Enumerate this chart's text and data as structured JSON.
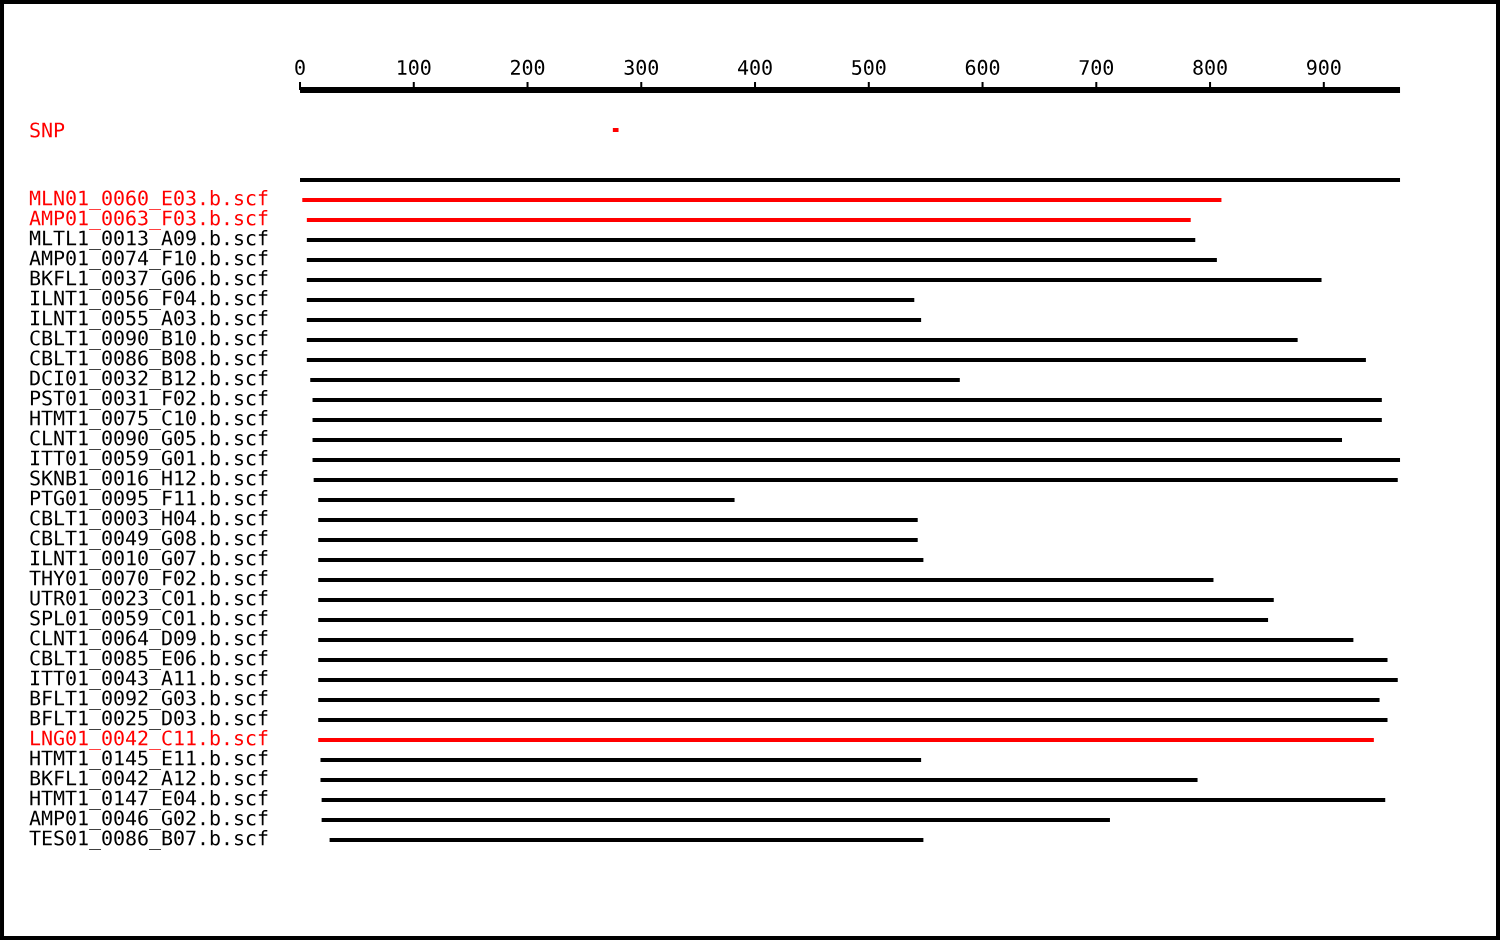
{
  "chart_data": {
    "type": "bar",
    "orientation": "horizontal",
    "categories": [
      "SNP",
      null,
      "MLN01_0060_E03.b.scf",
      "AMP01_0063_F03.b.scf",
      "MLTL1_0013_A09.b.scf",
      "AMP01_0074_F10.b.scf",
      "BKFL1_0037_G06.b.scf",
      "ILNT1_0056_F04.b.scf",
      "ILNT1_0055_A03.b.scf",
      "CBLT1_0090_B10.b.scf",
      "CBLT1_0086_B08.b.scf",
      "DCI01_0032_B12.b.scf",
      "PST01_0031_F02.b.scf",
      "HTMT1_0075_C10.b.scf",
      "CLNT1_0090_G05.b.scf",
      "ITT01_0059_G01.b.scf",
      "SKNB1_0016_H12.b.scf",
      "PTG01_0095_F11.b.scf",
      "CBLT1_0003_H04.b.scf",
      "CBLT1_0049_G08.b.scf",
      "ILNT1_0010_G07.b.scf",
      "THY01_0070_F02.b.scf",
      "UTR01_0023_C01.b.scf",
      "SPL01_0059_C01.b.scf",
      "CLNT1_0064_D09.b.scf",
      "CBLT1_0085_E06.b.scf",
      "ITT01_0043_A11.b.scf",
      "BFLT1_0092_G03.b.scf",
      "BFLT1_0025_D03.b.scf",
      "LNG01_0042_C11.b.scf",
      "HTMT1_0145_E11.b.scf",
      "BKFL1_0042_A12.b.scf",
      "HTMT1_0147_E04.b.scf",
      "AMP01_0046_G02.b.scf",
      "TES01_0086_B07.b.scf"
    ],
    "base": [
      275,
      0,
      2,
      6,
      6,
      6,
      6,
      6,
      6,
      6,
      6,
      9,
      11,
      11,
      11,
      11,
      12,
      16,
      16,
      16,
      16,
      16,
      16,
      16,
      16,
      16,
      16,
      16,
      16,
      16,
      18,
      18,
      19,
      19,
      26
    ],
    "values": [
      5,
      967,
      808,
      777,
      781,
      800,
      892,
      534,
      540,
      871,
      931,
      571,
      940,
      940,
      905,
      956,
      953,
      366,
      527,
      527,
      532,
      787,
      840,
      835,
      910,
      940,
      949,
      933,
      940,
      928,
      528,
      771,
      935,
      693,
      522
    ],
    "colors": [
      "#ff0000",
      "#000000",
      "#ff0000",
      "#ff0000",
      "#000000",
      "#000000",
      "#000000",
      "#000000",
      "#000000",
      "#000000",
      "#000000",
      "#000000",
      "#000000",
      "#000000",
      "#000000",
      "#000000",
      "#000000",
      "#000000",
      "#000000",
      "#000000",
      "#000000",
      "#000000",
      "#000000",
      "#000000",
      "#000000",
      "#000000",
      "#000000",
      "#000000",
      "#000000",
      "#ff0000",
      "#000000",
      "#000000",
      "#000000",
      "#000000",
      "#000000"
    ],
    "xlim": [
      0,
      967
    ],
    "xticks": [
      0,
      100,
      200,
      300,
      400,
      500,
      600,
      700,
      800,
      900
    ]
  }
}
